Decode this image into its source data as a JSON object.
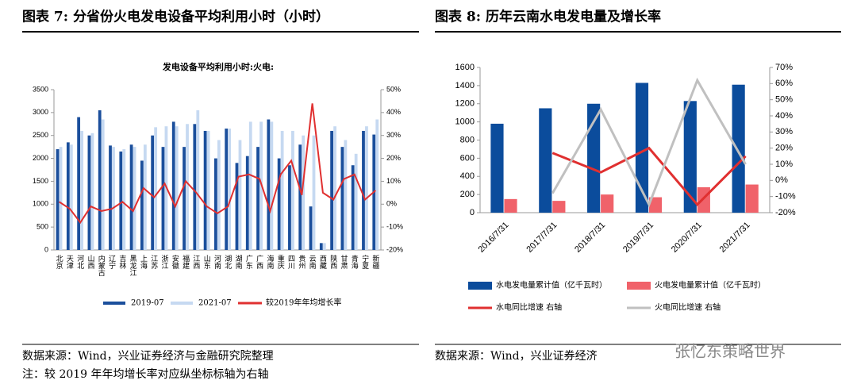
{
  "headers": [
    "图表 7:  分省份火电发电设备平均利用小时（小时）",
    "图表 8:  历年云南水电发电量及增长率"
  ],
  "notes": [
    "数据来源：Wind，兴业证券经济与金融研究院整理",
    "注：较 2019 年年均增长率对应纵坐标标轴为右轴",
    "数据来源：Wind，兴业证券经济",
    "张忆东策略世界"
  ],
  "chart_data": [
    {
      "type": "bar",
      "title": "发电设备平均利用小时:火电:",
      "categories": [
        "北京",
        "天津",
        "河北",
        "山西",
        "内蒙古",
        "辽宁",
        "吉林",
        "黑龙江",
        "上海",
        "江苏",
        "浙江",
        "安徽",
        "福建",
        "江西",
        "山东",
        "河南",
        "湖北",
        "湖南",
        "广东",
        "广西",
        "海南",
        "重庆",
        "四川",
        "贵州",
        "云南",
        "西藏",
        "陕西",
        "甘肃",
        "青海",
        "宁夏",
        "新疆"
      ],
      "series": [
        {
          "name": "2019-07",
          "type": "bar",
          "color": "#1b4f9c",
          "values": [
            2200,
            2350,
            2900,
            2500,
            3050,
            2280,
            2150,
            2300,
            1950,
            2500,
            2250,
            2800,
            2250,
            2750,
            2600,
            2000,
            2650,
            1900,
            2050,
            2250,
            2850,
            2000,
            1850,
            2300,
            950,
            150,
            2600,
            2250,
            1850,
            2600,
            2520
          ]
        },
        {
          "name": "2021-07",
          "type": "bar",
          "color": "#c6d9f1",
          "values": [
            2250,
            2300,
            2600,
            2550,
            2850,
            2250,
            2200,
            2250,
            2300,
            2680,
            2700,
            2700,
            2750,
            3050,
            2600,
            2400,
            2650,
            2400,
            2800,
            2800,
            2800,
            2600,
            2600,
            2500,
            2500,
            150,
            2700,
            2400,
            2100,
            2700,
            2850
          ]
        },
        {
          "name": "较2019年年均增长率",
          "type": "line",
          "axis": "y2",
          "color": "#e03030",
          "values": [
            1,
            -2,
            -8,
            -1,
            -3,
            -2,
            1,
            -3,
            7,
            3,
            9,
            -1,
            10,
            5,
            -1,
            -4,
            -1,
            12,
            13,
            11,
            -3,
            13,
            19,
            4,
            44,
            5,
            2,
            11,
            13,
            2,
            6
          ]
        }
      ],
      "ylim": [
        0,
        3500
      ],
      "yticks": [
        0,
        500,
        1000,
        1500,
        2000,
        2500,
        3000,
        3500
      ],
      "y2lim": [
        -20,
        50
      ],
      "y2ticks": [
        {
          "value": -20,
          "label": "-20%"
        },
        {
          "value": -10,
          "label": "-10%"
        },
        {
          "value": 0,
          "label": "0%"
        },
        {
          "value": 10,
          "label": "10%"
        },
        {
          "value": 20,
          "label": "20%"
        },
        {
          "value": 30,
          "label": "30%"
        },
        {
          "value": 40,
          "label": "40%"
        },
        {
          "value": 50,
          "label": "50%"
        }
      ],
      "grid": false
    },
    {
      "type": "bar",
      "categories": [
        "2016/7/31",
        "2017/7/31",
        "2018/7/31",
        "2019/7/31",
        "2020/7/31",
        "2021/7/31"
      ],
      "series": [
        {
          "name": "水电发电量累计值（亿千瓦时）",
          "type": "bar",
          "color": "#0b4c9c",
          "values": [
            980,
            1150,
            1200,
            1430,
            1230,
            1410
          ]
        },
        {
          "name": "火电发电量累计值（亿千瓦时）",
          "type": "bar",
          "color": "#f0626a",
          "values": [
            150,
            130,
            200,
            170,
            280,
            310
          ]
        },
        {
          "name": "水电同比增速 右轴",
          "type": "line",
          "axis": "y2",
          "color": "#e03030",
          "values": [
            null,
            17,
            5,
            20,
            -15,
            15
          ]
        },
        {
          "name": "火电同比增速 右轴",
          "type": "line",
          "axis": "y2",
          "color": "#c0c0c0",
          "values": [
            null,
            -8,
            44,
            -15,
            62,
            10
          ]
        }
      ],
      "ylim": [
        0,
        1600
      ],
      "yticks": [
        0,
        200,
        400,
        600,
        800,
        1000,
        1200,
        1400,
        1600
      ],
      "y2lim": [
        -20,
        70
      ],
      "y2ticks": [
        {
          "value": -20,
          "label": "-20%"
        },
        {
          "value": -10,
          "label": "-10%"
        },
        {
          "value": 0,
          "label": "0%"
        },
        {
          "value": 10,
          "label": "10%"
        },
        {
          "value": 20,
          "label": "20%"
        },
        {
          "value": 30,
          "label": "30%"
        },
        {
          "value": 40,
          "label": "40%"
        },
        {
          "value": 50,
          "label": "50%"
        },
        {
          "value": 60,
          "label": "60%"
        },
        {
          "value": 70,
          "label": "70%"
        }
      ],
      "grid": false
    }
  ]
}
